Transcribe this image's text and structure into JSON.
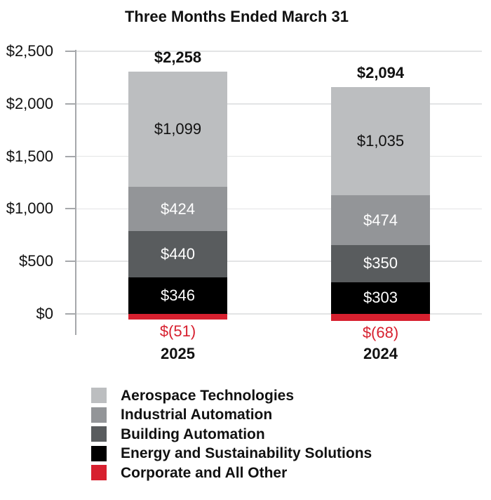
{
  "chart_data": {
    "type": "stacked-bar",
    "title": "Three Months Ended March 31",
    "categories": [
      "2025",
      "2024"
    ],
    "totals": [
      "$2,258",
      "$2,094"
    ],
    "total_values": [
      2258,
      2094
    ],
    "y_axis": {
      "ticks": [
        {
          "value": 0,
          "label": "$0"
        },
        {
          "value": 500,
          "label": "$500"
        },
        {
          "value": 1000,
          "label": "$1,000"
        },
        {
          "value": 1500,
          "label": "$1,500"
        },
        {
          "value": 2000,
          "label": "$2,000"
        },
        {
          "value": 2500,
          "label": "$2,500"
        }
      ],
      "range": [
        0,
        2500
      ],
      "grid": true
    },
    "series": [
      {
        "name": "Aerospace Technologies",
        "color": "#bcbec0",
        "label_color": "#111111",
        "values": [
          1099,
          1035
        ],
        "labels": [
          "$1,099",
          "$1,035"
        ]
      },
      {
        "name": "Industrial Automation",
        "color": "#939598",
        "label_color": "#ffffff",
        "values": [
          424,
          474
        ],
        "labels": [
          "$424",
          "$474"
        ]
      },
      {
        "name": "Building Automation",
        "color": "#595c5e",
        "label_color": "#ffffff",
        "values": [
          440,
          350
        ],
        "labels": [
          "$440",
          "$350"
        ]
      },
      {
        "name": "Energy and Sustainability Solutions",
        "color": "#000000",
        "label_color": "#ffffff",
        "values": [
          346,
          303
        ],
        "labels": [
          "$346",
          "$303"
        ]
      },
      {
        "name": "Corporate and All Other",
        "color": "#d7202f",
        "label_color": "#d7202f",
        "values": [
          -51,
          -68
        ],
        "labels": [
          "$(51)",
          "$(68)"
        ]
      }
    ],
    "negative_label_color": "#d7202f",
    "legend_position": "bottom-left"
  }
}
